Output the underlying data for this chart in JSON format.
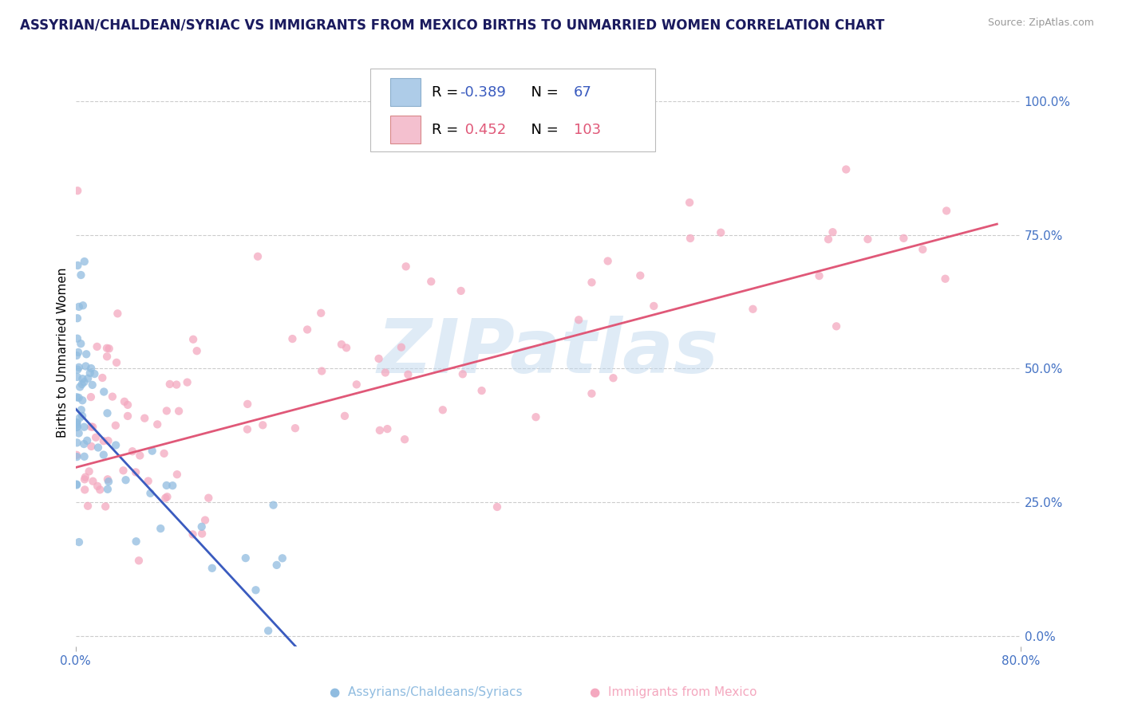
{
  "title": "ASSYRIAN/CHALDEAN/SYRIAC VS IMMIGRANTS FROM MEXICO BIRTHS TO UNMARRIED WOMEN CORRELATION CHART",
  "source": "Source: ZipAtlas.com",
  "ylabel": "Births to Unmarried Women",
  "right_ytick_vals": [
    0.0,
    0.25,
    0.5,
    0.75,
    1.0
  ],
  "right_ytick_labels": [
    "0.0%",
    "25.0%",
    "50.0%",
    "75.0%",
    "100.0%"
  ],
  "xlim": [
    0.0,
    0.8
  ],
  "ylim": [
    -0.02,
    1.08
  ],
  "blue_color": "#90bce0",
  "blue_box_color": "#aecce8",
  "blue_line_color": "#3a5bbf",
  "pink_color": "#f4a8bf",
  "pink_box_color": "#f4c0cf",
  "pink_line_color": "#e05878",
  "background_color": "#ffffff",
  "grid_color": "#cccccc",
  "scatter_alpha": 0.75,
  "scatter_size": 55,
  "watermark_color": "#c0d8ee",
  "title_color": "#1a1a5e",
  "title_fontsize": 12,
  "label_fontsize": 11,
  "tick_label_color": "#4472c4",
  "legend_R_blue": "-0.389",
  "legend_N_blue": "67",
  "legend_R_pink": "0.452",
  "legend_N_pink": "103",
  "blue_trend": [
    0.0,
    0.195,
    0.425,
    -0.04
  ],
  "pink_trend": [
    0.0,
    0.78,
    0.315,
    0.77
  ],
  "blue_label": "Assyrians/Chaldeans/Syriacs",
  "pink_label": "Immigrants from Mexico"
}
